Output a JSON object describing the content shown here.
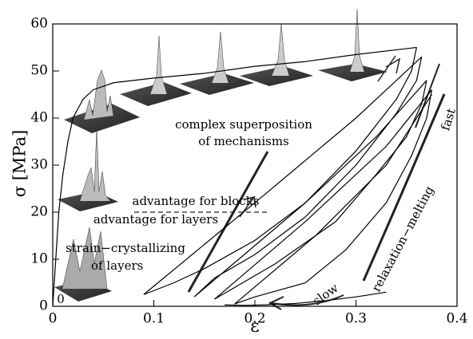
{
  "chart_data": {
    "type": "line",
    "x_label": "ε",
    "y_label": "σ [MPa]",
    "xlim": [
      0,
      0.4
    ],
    "xticks": [
      0,
      0.1,
      0.2,
      0.3,
      0.4
    ],
    "ylim": [
      0,
      60
    ],
    "yticks": [
      0,
      10,
      20,
      30,
      40,
      50,
      60
    ],
    "series": [
      {
        "color": "#000000",
        "x": [
          0,
          0.003,
          0.006,
          0.01,
          0.015,
          0.02,
          0.03,
          0.04,
          0.06,
          0.1,
          0.15,
          0.2,
          0.25,
          0.3,
          0.36
        ],
        "values": [
          0,
          10,
          20,
          28,
          35,
          40,
          44,
          46,
          47.5,
          48.5,
          49.5,
          51,
          52,
          53.5,
          55
        ]
      },
      {
        "color": "#000000",
        "x": [
          0.36,
          0.355,
          0.34,
          0.3,
          0.25,
          0.2,
          0.15,
          0.12,
          0.09,
          0.2,
          0.3,
          0.365
        ],
        "values": [
          55,
          50,
          44,
          33,
          22,
          14,
          8,
          5,
          2.5,
          22,
          40,
          53
        ]
      },
      {
        "color": "#000000",
        "x": [
          0.365,
          0.36,
          0.34,
          0.3,
          0.25,
          0.2,
          0.16,
          0.14,
          0.25,
          0.32,
          0.37
        ],
        "values": [
          53,
          48,
          41,
          30,
          19,
          11,
          6,
          2,
          22,
          36,
          48
        ]
      },
      {
        "color": "#000000",
        "x": [
          0.37,
          0.365,
          0.35,
          0.32,
          0.28,
          0.22,
          0.18,
          0.16,
          0.25,
          0.33,
          0.375
        ],
        "values": [
          48,
          43,
          36,
          28,
          18,
          9,
          4,
          1.5,
          18,
          34,
          46
        ]
      },
      {
        "color": "#000000",
        "x": [
          0.375,
          0.37,
          0.355,
          0.33,
          0.29,
          0.25,
          0.2,
          0.18,
          0.26,
          0.33,
          0.375
        ],
        "values": [
          46,
          40,
          32,
          22,
          12,
          5,
          2,
          0.5,
          15,
          30,
          45
        ]
      },
      {
        "color": "#000000",
        "x": [
          0.33,
          0.3,
          0.27,
          0.24,
          0.21,
          0.19,
          0.17
        ],
        "values": [
          3,
          2,
          1.2,
          0.6,
          0.3,
          0.2,
          0.3
        ]
      }
    ],
    "annotations": [
      "complex superposition",
      "of mechanisms",
      "advantage for blocks",
      "advantage for layers",
      "strain−crystallizing",
      "of layers",
      "relaxation−melting",
      "fast",
      "slow",
      "0"
    ]
  }
}
